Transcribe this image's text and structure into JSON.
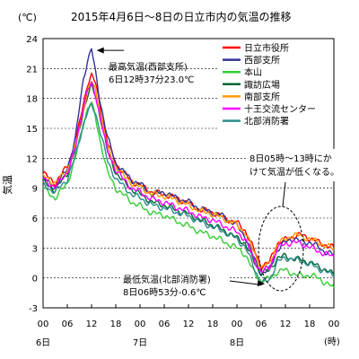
{
  "chart_data": {
    "type": "line",
    "title": "2015年4月6日～8日の日立市内の気温の推移",
    "unit_label": "(℃)",
    "ylabel": "気温",
    "xlabel": "(時)",
    "ylim": [
      -3,
      24
    ],
    "xlim": [
      0,
      72
    ],
    "yticks": [
      -3,
      0,
      3,
      6,
      9,
      12,
      15,
      18,
      21,
      24
    ],
    "grid": "horizontal-dashed",
    "legend_position": "top-right",
    "x_ticks": [
      {
        "h": 0,
        "label": "00"
      },
      {
        "h": 6,
        "label": "06"
      },
      {
        "h": 12,
        "label": "12"
      },
      {
        "h": 18,
        "label": "18"
      },
      {
        "h": 24,
        "label": "00"
      },
      {
        "h": 30,
        "label": "06"
      },
      {
        "h": 36,
        "label": "12"
      },
      {
        "h": 42,
        "label": "18"
      },
      {
        "h": 48,
        "label": "00"
      },
      {
        "h": 54,
        "label": "06"
      },
      {
        "h": 60,
        "label": "12"
      },
      {
        "h": 66,
        "label": "18"
      },
      {
        "h": 72,
        "label": "00"
      }
    ],
    "day_labels": [
      {
        "h": 0,
        "label": "6日"
      },
      {
        "h": 24,
        "label": "7日"
      },
      {
        "h": 48,
        "label": "8日"
      }
    ],
    "series": [
      {
        "name": "日立市役所",
        "color": "#ff0000",
        "points": [
          [
            0,
            10.5
          ],
          [
            3,
            9.5
          ],
          [
            6,
            11.2
          ],
          [
            8,
            13.5
          ],
          [
            10,
            17.5
          ],
          [
            11,
            19.5
          ],
          [
            12,
            20.3
          ],
          [
            13,
            19.5
          ],
          [
            14,
            17.5
          ],
          [
            16,
            13.5
          ],
          [
            18,
            11.5
          ],
          [
            20,
            10.5
          ],
          [
            22,
            9.7
          ],
          [
            24,
            9.3
          ],
          [
            27,
            8.6
          ],
          [
            30,
            8.4
          ],
          [
            33,
            8.0
          ],
          [
            36,
            7.5
          ],
          [
            39,
            6.8
          ],
          [
            42,
            6.6
          ],
          [
            45,
            6.0
          ],
          [
            48,
            5.5
          ],
          [
            50,
            4.8
          ],
          [
            52,
            3.0
          ],
          [
            54,
            1.2
          ],
          [
            56,
            1.5
          ],
          [
            58,
            3.5
          ],
          [
            60,
            3.8
          ],
          [
            62,
            4.2
          ],
          [
            64,
            4.3
          ],
          [
            66,
            4.0
          ],
          [
            68,
            3.6
          ],
          [
            70,
            3.3
          ],
          [
            72,
            3.0
          ]
        ]
      },
      {
        "name": "西部支所",
        "color": "#33339a",
        "points": [
          [
            0,
            10.0
          ],
          [
            3,
            9.0
          ],
          [
            6,
            11.0
          ],
          [
            8,
            14.0
          ],
          [
            10,
            20.0
          ],
          [
            11,
            21.8
          ],
          [
            12,
            23.0
          ],
          [
            13,
            20.5
          ],
          [
            14,
            18.0
          ],
          [
            16,
            14.0
          ],
          [
            18,
            11.5
          ],
          [
            20,
            10.6
          ],
          [
            22,
            9.8
          ],
          [
            24,
            9.4
          ],
          [
            27,
            8.4
          ],
          [
            30,
            8.6
          ],
          [
            33,
            8.0
          ],
          [
            36,
            7.6
          ],
          [
            39,
            6.9
          ],
          [
            42,
            6.6
          ],
          [
            45,
            6.1
          ],
          [
            48,
            5.2
          ],
          [
            50,
            4.2
          ],
          [
            52,
            2.2
          ],
          [
            54,
            0.4
          ],
          [
            56,
            0.8
          ],
          [
            58,
            2.8
          ],
          [
            60,
            3.6
          ],
          [
            62,
            4.0
          ],
          [
            64,
            3.6
          ],
          [
            66,
            3.6
          ],
          [
            68,
            3.1
          ],
          [
            70,
            2.6
          ],
          [
            72,
            2.3
          ]
        ]
      },
      {
        "name": "本山",
        "color": "#33cc33",
        "points": [
          [
            0,
            9.0
          ],
          [
            3,
            8.0
          ],
          [
            6,
            9.5
          ],
          [
            8,
            12.0
          ],
          [
            10,
            15.5
          ],
          [
            11,
            17.0
          ],
          [
            12,
            17.5
          ],
          [
            13,
            16.0
          ],
          [
            14,
            14.0
          ],
          [
            16,
            10.5
          ],
          [
            18,
            9.0
          ],
          [
            20,
            8.3
          ],
          [
            22,
            7.6
          ],
          [
            24,
            7.2
          ],
          [
            27,
            6.5
          ],
          [
            30,
            6.3
          ],
          [
            33,
            5.7
          ],
          [
            36,
            5.2
          ],
          [
            39,
            4.6
          ],
          [
            42,
            4.2
          ],
          [
            45,
            3.6
          ],
          [
            48,
            3.0
          ],
          [
            50,
            2.4
          ],
          [
            52,
            0.7
          ],
          [
            54,
            -0.3
          ],
          [
            56,
            -0.1
          ],
          [
            58,
            0.6
          ],
          [
            60,
            0.8
          ],
          [
            62,
            0.4
          ],
          [
            64,
            0.2
          ],
          [
            66,
            0.3
          ],
          [
            68,
            0.0
          ],
          [
            70,
            -0.5
          ],
          [
            72,
            -1.0
          ]
        ]
      },
      {
        "name": "諏訪広場",
        "color": "#006633",
        "points": [
          [
            0,
            9.6
          ],
          [
            3,
            8.8
          ],
          [
            6,
            10.5
          ],
          [
            8,
            13.0
          ],
          [
            10,
            16.8
          ],
          [
            11,
            18.3
          ],
          [
            12,
            19.2
          ],
          [
            13,
            18.2
          ],
          [
            14,
            16.5
          ],
          [
            16,
            12.6
          ],
          [
            18,
            10.6
          ],
          [
            20,
            9.6
          ],
          [
            22,
            8.9
          ],
          [
            24,
            8.4
          ],
          [
            27,
            7.6
          ],
          [
            30,
            7.3
          ],
          [
            33,
            6.8
          ],
          [
            36,
            6.4
          ],
          [
            39,
            5.8
          ],
          [
            42,
            5.3
          ],
          [
            45,
            4.7
          ],
          [
            48,
            4.0
          ],
          [
            50,
            3.5
          ],
          [
            52,
            1.8
          ],
          [
            54,
            0.5
          ],
          [
            56,
            0.7
          ],
          [
            58,
            2.0
          ],
          [
            60,
            2.2
          ],
          [
            62,
            1.9
          ],
          [
            64,
            1.8
          ],
          [
            66,
            1.5
          ],
          [
            68,
            1.2
          ],
          [
            70,
            0.8
          ],
          [
            72,
            0.3
          ]
        ]
      },
      {
        "name": "南部支所",
        "color": "#ff9900",
        "points": [
          [
            0,
            10.2
          ],
          [
            3,
            9.5
          ],
          [
            6,
            10.8
          ],
          [
            8,
            13.2
          ],
          [
            10,
            17.0
          ],
          [
            11,
            18.7
          ],
          [
            12,
            19.7
          ],
          [
            13,
            18.8
          ],
          [
            14,
            17.0
          ],
          [
            16,
            13.0
          ],
          [
            18,
            11.2
          ],
          [
            20,
            10.2
          ],
          [
            22,
            9.5
          ],
          [
            24,
            9.1
          ],
          [
            27,
            8.4
          ],
          [
            30,
            8.2
          ],
          [
            33,
            7.8
          ],
          [
            36,
            7.3
          ],
          [
            39,
            6.7
          ],
          [
            42,
            6.4
          ],
          [
            45,
            5.9
          ],
          [
            48,
            5.3
          ],
          [
            50,
            4.6
          ],
          [
            52,
            2.8
          ],
          [
            54,
            1.0
          ],
          [
            56,
            1.4
          ],
          [
            58,
            3.4
          ],
          [
            60,
            3.9
          ],
          [
            62,
            4.3
          ],
          [
            64,
            4.2
          ],
          [
            66,
            3.9
          ],
          [
            68,
            3.6
          ],
          [
            70,
            3.2
          ],
          [
            72,
            2.9
          ]
        ]
      },
      {
        "name": "十王交流センター",
        "color": "#ff00ff",
        "points": [
          [
            0,
            9.9
          ],
          [
            3,
            9.1
          ],
          [
            6,
            10.6
          ],
          [
            8,
            13.0
          ],
          [
            10,
            17.3
          ],
          [
            11,
            18.8
          ],
          [
            12,
            19.4
          ],
          [
            13,
            18.3
          ],
          [
            14,
            16.5
          ],
          [
            16,
            12.6
          ],
          [
            18,
            10.9
          ],
          [
            20,
            9.8
          ],
          [
            22,
            9.0
          ],
          [
            24,
            8.6
          ],
          [
            27,
            7.9
          ],
          [
            30,
            7.6
          ],
          [
            33,
            7.1
          ],
          [
            36,
            6.7
          ],
          [
            39,
            6.1
          ],
          [
            42,
            5.8
          ],
          [
            45,
            5.2
          ],
          [
            48,
            4.6
          ],
          [
            50,
            3.9
          ],
          [
            52,
            2.0
          ],
          [
            54,
            0.6
          ],
          [
            56,
            1.0
          ],
          [
            58,
            3.0
          ],
          [
            60,
            3.4
          ],
          [
            62,
            3.6
          ],
          [
            64,
            3.4
          ],
          [
            66,
            3.1
          ],
          [
            68,
            2.7
          ],
          [
            70,
            2.4
          ],
          [
            72,
            2.1
          ]
        ]
      },
      {
        "name": "北部消防署",
        "color": "#2c8c8c",
        "points": [
          [
            0,
            9.3
          ],
          [
            3,
            8.6
          ],
          [
            6,
            9.9
          ],
          [
            8,
            12.2
          ],
          [
            10,
            15.5
          ],
          [
            11,
            16.6
          ],
          [
            12,
            17.3
          ],
          [
            13,
            16.5
          ],
          [
            14,
            15.0
          ],
          [
            16,
            11.6
          ],
          [
            18,
            10.0
          ],
          [
            20,
            9.1
          ],
          [
            22,
            8.4
          ],
          [
            24,
            8.0
          ],
          [
            27,
            7.3
          ],
          [
            30,
            7.0
          ],
          [
            33,
            6.6
          ],
          [
            36,
            6.2
          ],
          [
            39,
            5.6
          ],
          [
            42,
            5.1
          ],
          [
            45,
            4.6
          ],
          [
            48,
            3.9
          ],
          [
            50,
            3.1
          ],
          [
            52,
            1.3
          ],
          [
            54,
            -0.6
          ],
          [
            56,
            -0.2
          ],
          [
            58,
            1.6
          ],
          [
            60,
            2.0
          ],
          [
            62,
            1.9
          ],
          [
            64,
            1.7
          ],
          [
            66,
            1.4
          ],
          [
            68,
            1.0
          ],
          [
            70,
            0.6
          ],
          [
            72,
            0.2
          ]
        ]
      }
    ],
    "annotations": {
      "max": {
        "line1": "最高気温(西部支所)",
        "line2": "6日12時37分23.0℃",
        "at": [
          12.6,
          23.0
        ]
      },
      "min": {
        "line1": "最低気温(北部消防署)",
        "line2": "8日06時53分-0.6℃",
        "at": [
          54.9,
          -0.6
        ]
      },
      "note": {
        "line1": "8日05時～13時にか",
        "line2": "けて気温が低くなる。"
      }
    }
  }
}
